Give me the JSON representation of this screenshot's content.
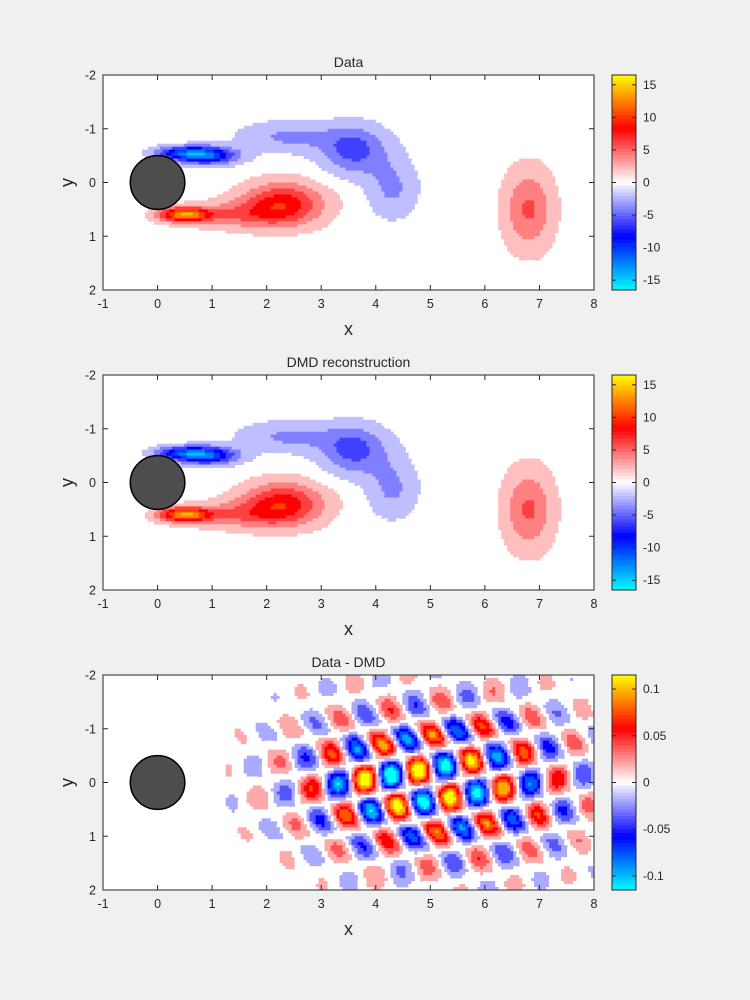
{
  "figure": {
    "background": "#f0f0f0",
    "colormap": [
      "#00ffff",
      "#0000ff",
      "#ffffff",
      "#ff0000",
      "#ffff00"
    ]
  },
  "chart_data": [
    {
      "type": "heatmap",
      "title": "Data",
      "xlabel": "x",
      "ylabel": "y",
      "xlim": [
        -1,
        8
      ],
      "ylim": [
        2,
        -2
      ],
      "xticks": [
        "-1",
        "0",
        "1",
        "2",
        "3",
        "4",
        "5",
        "6",
        "7",
        "8"
      ],
      "yticks": [
        "-2",
        "-1",
        "0",
        "1",
        "2"
      ],
      "colorbar": {
        "clim": [
          -16.5,
          16.5
        ],
        "ticks": [
          "15",
          "10",
          "5",
          "0",
          "-5",
          "-10",
          "-15"
        ],
        "tick_values": [
          15,
          10,
          5,
          0,
          -5,
          -10,
          -15
        ]
      },
      "cylinder": {
        "x": 0,
        "y": 0,
        "r": 0.5
      },
      "field": "vorticity"
    },
    {
      "type": "heatmap",
      "title": "DMD reconstruction",
      "xlabel": "x",
      "ylabel": "y",
      "xlim": [
        -1,
        8
      ],
      "ylim": [
        2,
        -2
      ],
      "xticks": [
        "-1",
        "0",
        "1",
        "2",
        "3",
        "4",
        "5",
        "6",
        "7",
        "8"
      ],
      "yticks": [
        "-2",
        "-1",
        "0",
        "1",
        "2"
      ],
      "colorbar": {
        "clim": [
          -16.5,
          16.5
        ],
        "ticks": [
          "15",
          "10",
          "5",
          "0",
          "-5",
          "-10",
          "-15"
        ],
        "tick_values": [
          15,
          10,
          5,
          0,
          -5,
          -10,
          -15
        ]
      },
      "cylinder": {
        "x": 0,
        "y": 0,
        "r": 0.5
      },
      "field": "vorticity"
    },
    {
      "type": "heatmap",
      "title": "Data - DMD",
      "xlabel": "x",
      "ylabel": "y",
      "xlim": [
        -1,
        8
      ],
      "ylim": [
        2,
        -2
      ],
      "xticks": [
        "-1",
        "0",
        "1",
        "2",
        "3",
        "4",
        "5",
        "6",
        "7",
        "8"
      ],
      "yticks": [
        "-2",
        "-1",
        "0",
        "1",
        "2"
      ],
      "colorbar": {
        "clim": [
          -0.115,
          0.115
        ],
        "ticks": [
          "0.1",
          "0.05",
          "0",
          "-0.05",
          "-0.1"
        ],
        "tick_values": [
          0.1,
          0.05,
          0,
          -0.05,
          -0.1
        ]
      },
      "cylinder": {
        "x": 0,
        "y": 0,
        "r": 0.5
      },
      "field": "residual"
    }
  ]
}
